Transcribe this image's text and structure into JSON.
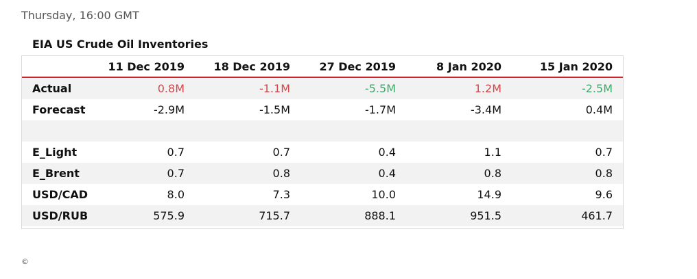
{
  "header": {
    "timestamp": "Thursday, 16:00 GMT"
  },
  "table": {
    "title": "EIA US Crude Oil Inventories",
    "columns": [
      "",
      "11 Dec 2019",
      "18 Dec 2019",
      "27 Dec 2019",
      "8 Jan 2020",
      "15 Jan 2020"
    ],
    "rows": [
      {
        "label": "Actual",
        "values": [
          "0.8M",
          "-1.1M",
          "-5.5M",
          "1.2M",
          "-2.5M"
        ]
      },
      {
        "label": "Forecast",
        "values": [
          "-2.9M",
          "-1.5M",
          "-1.7M",
          "-3.4M",
          "0.4M"
        ]
      },
      {
        "label": "",
        "values": [
          "",
          "",
          "",
          "",
          ""
        ]
      },
      {
        "label": "E_Light",
        "values": [
          "0.7",
          "0.7",
          "0.4",
          "1.1",
          "0.7"
        ]
      },
      {
        "label": "E_Brent",
        "values": [
          "0.7",
          "0.8",
          "0.4",
          "0.8",
          "0.8"
        ]
      },
      {
        "label": "USD/CAD",
        "values": [
          "8.0",
          "7.3",
          "10.0",
          "14.9",
          "9.6"
        ]
      },
      {
        "label": "USD/RUB",
        "values": [
          "575.9",
          "715.7",
          "888.1",
          "951.5",
          "461.7"
        ]
      }
    ],
    "actual_colors": [
      "#d0484b",
      "#d0484b",
      "#3fa86a",
      "#d0484b",
      "#3fa86a"
    ]
  },
  "footer": {
    "copyright": "©"
  }
}
